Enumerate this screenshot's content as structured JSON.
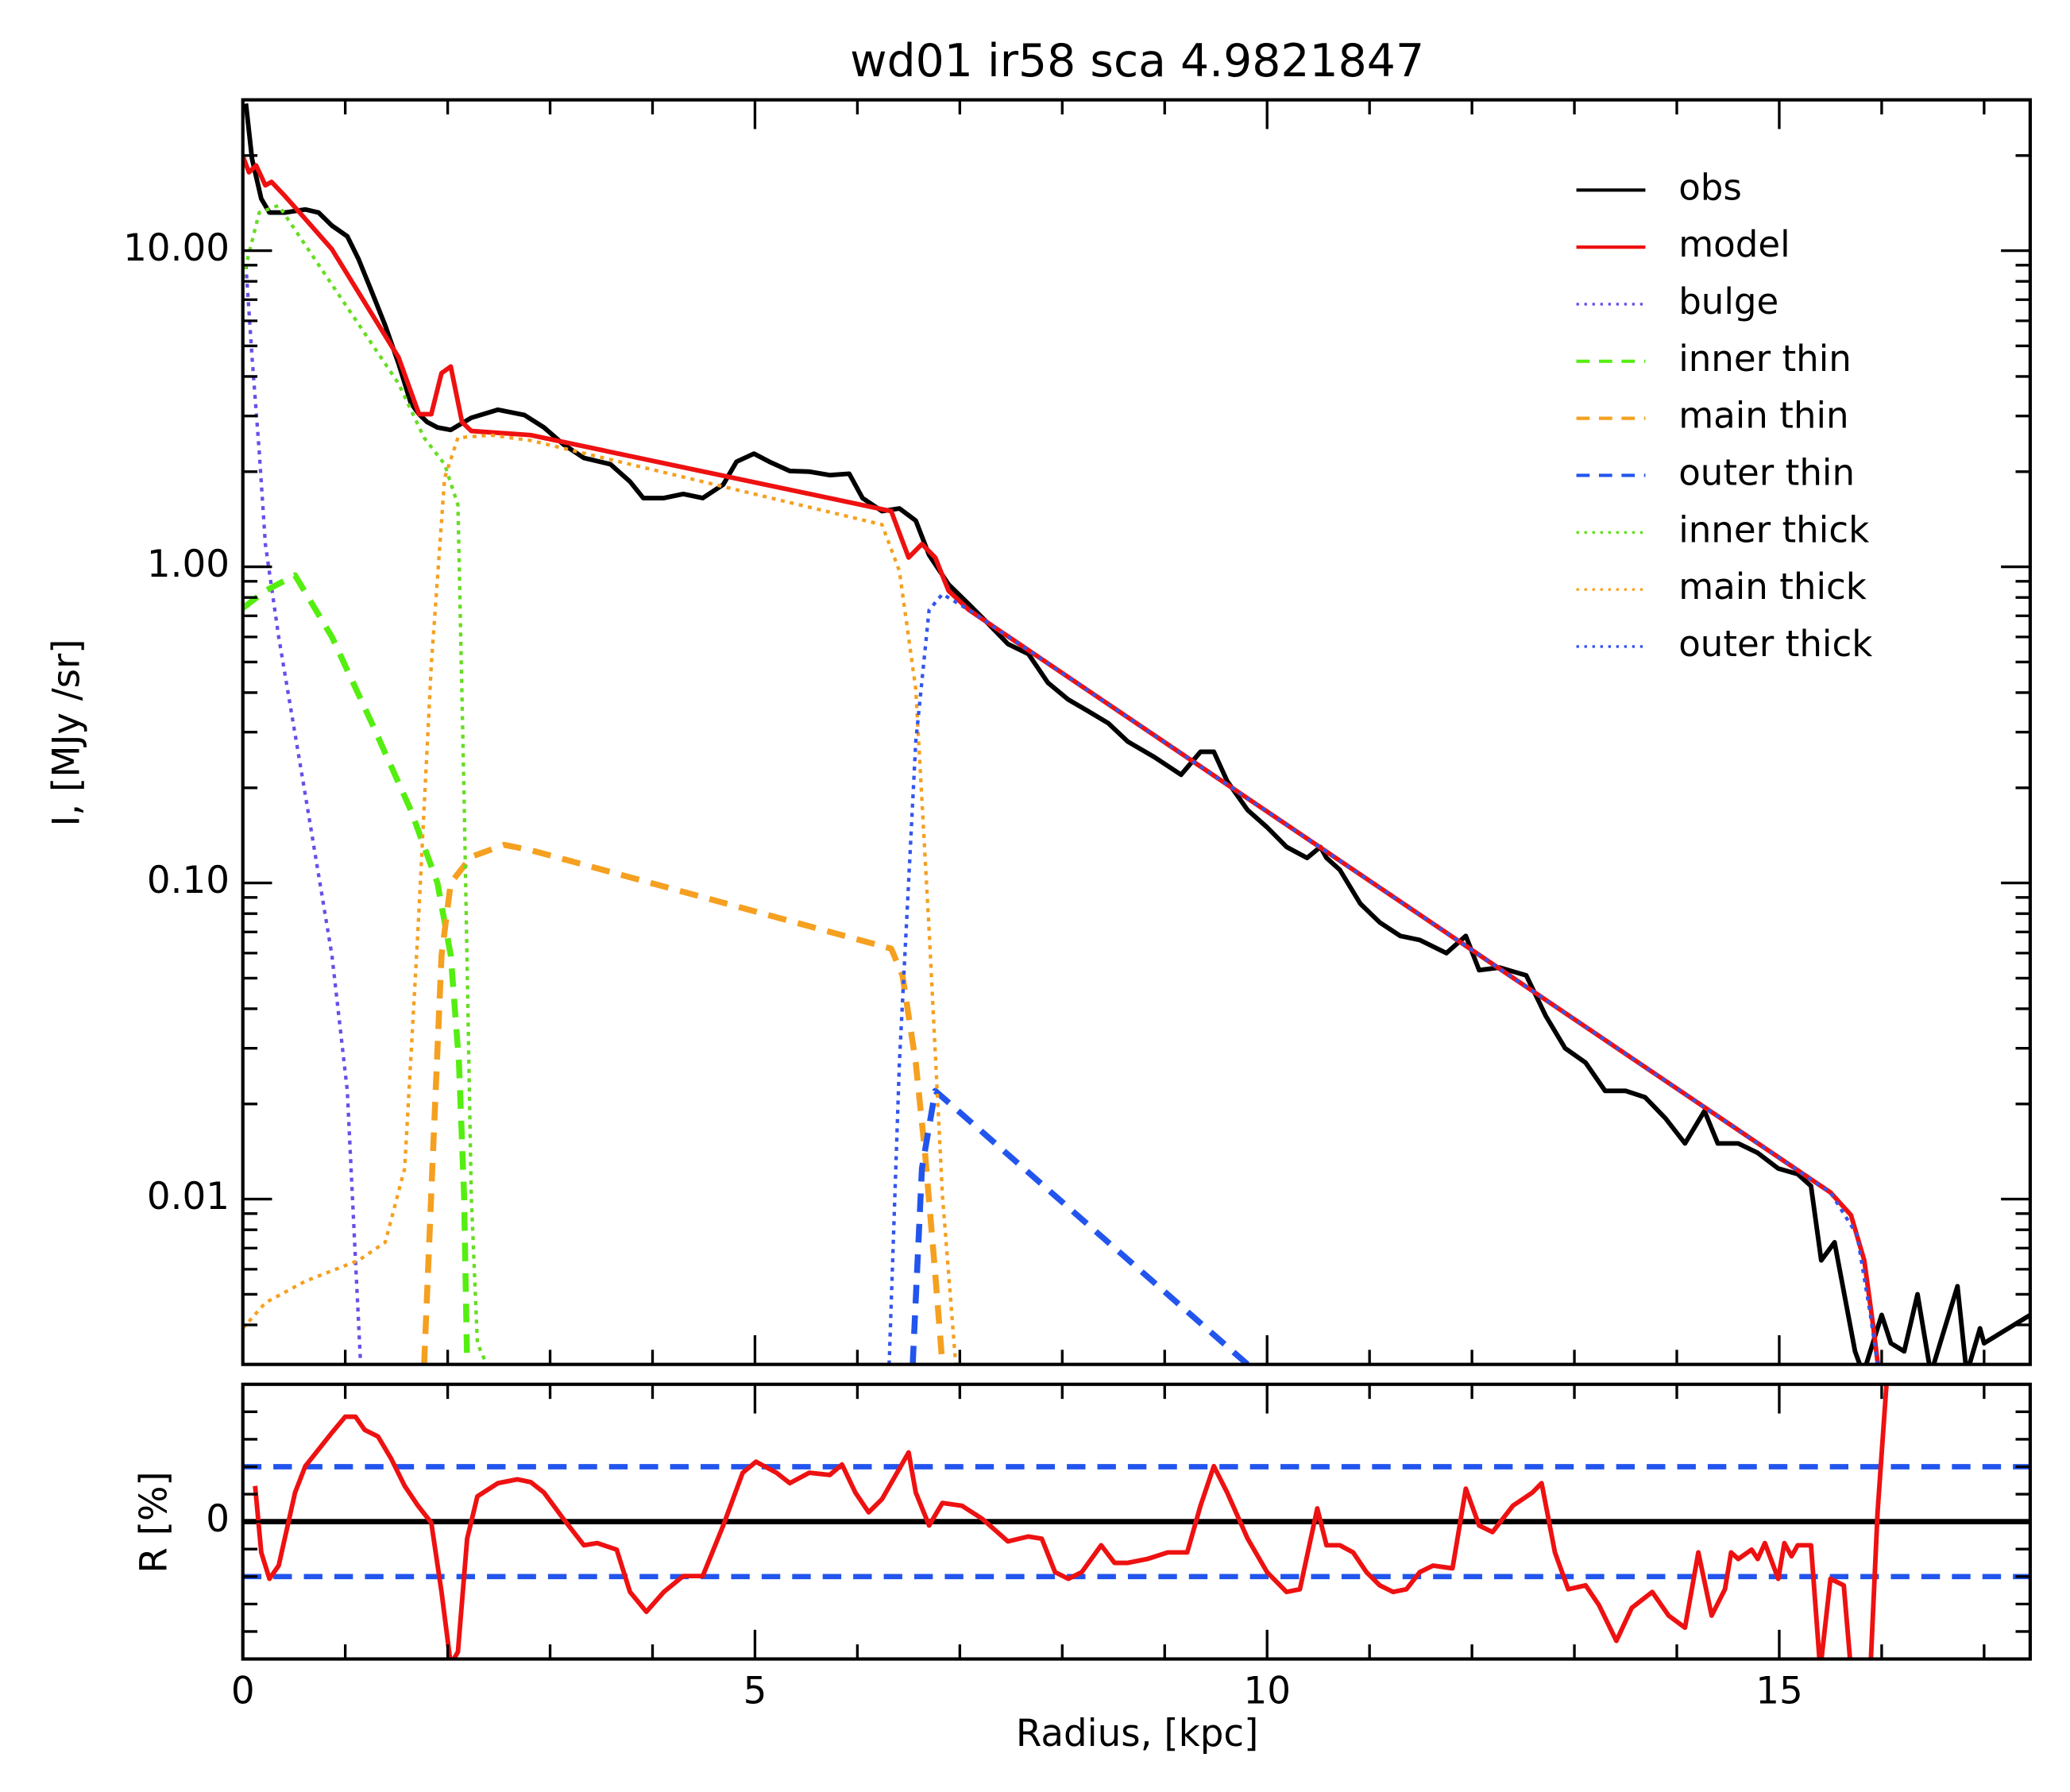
{
  "chart_data": [
    {
      "type": "line",
      "title": "wd01 ir58 sca 4.9821847",
      "ylabel": "I, [MJy /sr]",
      "ylog": true,
      "xlim": [
        0,
        17.45
      ],
      "ylim": [
        0.003,
        30
      ],
      "xticks": [
        0,
        5,
        10,
        15
      ],
      "show_xticklabels": false,
      "xminorticks": [
        1,
        2,
        3,
        4,
        6,
        7,
        8,
        9,
        11,
        12,
        13,
        14,
        16,
        17
      ],
      "yticks": [
        0.01,
        {
          "value": 0.1,
          "label": "0.10"
        },
        {
          "value": 1,
          "label": "1.00"
        },
        {
          "value": 10,
          "label": "10.00"
        }
      ],
      "yminorticks": [
        0.004,
        0.005,
        0.006,
        0.007,
        0.008,
        0.009,
        0.02,
        0.03,
        0.04,
        0.05,
        0.06,
        0.07,
        0.08,
        0.09,
        0.2,
        0.3,
        0.4,
        0.5,
        0.6,
        0.7,
        0.8,
        0.9,
        2,
        3,
        4,
        5,
        6,
        7,
        8,
        9,
        20
      ],
      "legend": "upper right",
      "series": [
        {
          "name": "obs",
          "color": "#000000",
          "style": "solid",
          "x": [
            0.03,
            0.09,
            0.18,
            0.26,
            0.41,
            0.61,
            0.74,
            0.87,
            1.02,
            1.13,
            1.26,
            1.39,
            1.52,
            1.64,
            1.72,
            1.8,
            1.9,
            2.03,
            2.23,
            2.49,
            2.75,
            2.94,
            3.13,
            3.33,
            3.59,
            3.78,
            3.91,
            4.11,
            4.3,
            4.49,
            4.69,
            4.82,
            4.99,
            5.14,
            5.34,
            5.53,
            5.73,
            5.92,
            6.05,
            6.24,
            6.41,
            6.57,
            6.7,
            6.89,
            7.09,
            7.28,
            7.47,
            7.67,
            7.86,
            8.06,
            8.25,
            8.45,
            8.64,
            8.9,
            9.16,
            9.35,
            9.48,
            9.61,
            9.81,
            10.0,
            10.19,
            10.39,
            10.52,
            10.58,
            10.71,
            10.91,
            11.1,
            11.3,
            11.49,
            11.75,
            11.94,
            12.07,
            12.27,
            12.53,
            12.72,
            12.91,
            13.11,
            13.3,
            13.5,
            13.69,
            13.89,
            14.08,
            14.27,
            14.4,
            14.6,
            14.79,
            14.99,
            15.18,
            15.31,
            15.41,
            15.54,
            15.74,
            15.82,
            16.0,
            16.09,
            16.22,
            16.35,
            16.48,
            16.74,
            16.83,
            16.96,
            17.0,
            17.45
          ],
          "values": [
            29.2,
            19.5,
            14.6,
            13.2,
            13.2,
            13.5,
            13.2,
            12.0,
            11.1,
            9.4,
            7.4,
            5.8,
            4.4,
            3.3,
            3.04,
            2.87,
            2.76,
            2.71,
            2.96,
            3.14,
            3.02,
            2.76,
            2.44,
            2.21,
            2.11,
            1.86,
            1.65,
            1.65,
            1.7,
            1.65,
            1.82,
            2.15,
            2.28,
            2.15,
            2.01,
            2.0,
            1.95,
            1.97,
            1.65,
            1.5,
            1.53,
            1.4,
            1.09,
            0.88,
            0.76,
            0.66,
            0.57,
            0.53,
            0.43,
            0.38,
            0.35,
            0.32,
            0.28,
            0.25,
            0.22,
            0.26,
            0.26,
            0.21,
            0.17,
            0.15,
            0.13,
            0.12,
            0.13,
            0.12,
            0.11,
            0.086,
            0.075,
            0.068,
            0.066,
            0.06,
            0.068,
            0.053,
            0.054,
            0.051,
            0.038,
            0.03,
            0.027,
            0.022,
            0.022,
            0.021,
            0.018,
            0.015,
            0.019,
            0.015,
            0.015,
            0.014,
            0.0125,
            0.012,
            0.011,
            0.0064,
            0.0073,
            0.0033,
            0.0028,
            0.0043,
            0.0035,
            0.0033,
            0.005,
            0.0028,
            0.0053,
            0.0028,
            0.0039,
            0.0035,
            0.0043
          ]
        },
        {
          "name": "model",
          "color": "#ee1111",
          "style": "solid",
          "x": [
            0,
            0.06,
            0.13,
            0.22,
            0.28,
            0.41,
            0.61,
            0.87,
            1.52,
            1.72,
            1.84,
            1.94,
            2.03,
            2.14,
            2.23,
            2.81,
            6.33,
            6.5,
            6.63,
            6.76,
            6.89,
            7.09,
            15.5,
            15.7,
            15.83,
            15.92,
            16.0
          ],
          "values": [
            19.9,
            17.7,
            18.6,
            16.1,
            16.5,
            14.9,
            12.6,
            10.1,
            4.6,
            3.04,
            3.04,
            4.1,
            4.3,
            2.87,
            2.69,
            2.61,
            1.5,
            1.07,
            1.18,
            1.07,
            0.84,
            0.73,
            0.0105,
            0.0089,
            0.0064,
            0.0039,
            0.0024
          ]
        },
        {
          "name": "bulge",
          "color": "#6a4ee8",
          "style": "dotted",
          "x": [
            0.03,
            0.09,
            0.16,
            0.22,
            0.35,
            0.61,
            0.87,
            1.02,
            1.1,
            1.15
          ],
          "values": [
            9.0,
            4.6,
            2.32,
            1.18,
            0.6,
            0.19,
            0.059,
            0.022,
            0.0064,
            0.003
          ]
        },
        {
          "name": "inner thin",
          "color": "#55ee11",
          "style": "dashed",
          "x": [
            0,
            0.22,
            0.51,
            0.87,
            1.26,
            1.64,
            1.9,
            2.03,
            2.11,
            2.16,
            2.19
          ],
          "values": [
            0.74,
            0.84,
            0.94,
            0.6,
            0.32,
            0.17,
            0.1,
            0.059,
            0.027,
            0.0103,
            0.003
          ]
        },
        {
          "name": "main thin",
          "color": "#f5a020",
          "style": "dashed",
          "x": [
            1.77,
            1.85,
            1.94,
            2.03,
            2.23,
            2.55,
            2.81,
            6.33,
            6.44,
            6.57,
            6.66,
            6.76,
            6.83
          ],
          "values": [
            0.003,
            0.0125,
            0.059,
            0.1,
            0.121,
            0.132,
            0.127,
            0.062,
            0.051,
            0.027,
            0.014,
            0.0058,
            0.003
          ]
        },
        {
          "name": "outer thin",
          "color": "#2255ee",
          "style": "dashed",
          "x": [
            6.54,
            6.63,
            6.76,
            9.81
          ],
          "values": [
            0.003,
            0.0125,
            0.022,
            0.003
          ]
        },
        {
          "name": "inner thick",
          "color": "#66dd22",
          "style": "dotted",
          "x": [
            0,
            0.16,
            0.35,
            1.52,
            1.77,
            1.97,
            2.1,
            2.16,
            2.23,
            2.29,
            2.38
          ],
          "values": [
            8.2,
            13.2,
            13.9,
            3.8,
            2.56,
            2.11,
            1.57,
            0.19,
            0.0103,
            0.0035,
            0.003
          ]
        },
        {
          "name": "main thick",
          "color": "#f5a020",
          "style": "dotted",
          "x": [
            0,
            0.22,
            0.61,
            1.13,
            1.39,
            1.58,
            1.71,
            1.84,
            1.97,
            2.1,
            2.42,
            2.81,
            6.24,
            6.41,
            6.57,
            6.7,
            6.83,
            6.96
          ],
          "values": [
            0.0039,
            0.0047,
            0.0055,
            0.0064,
            0.0073,
            0.0125,
            0.071,
            0.49,
            1.91,
            2.56,
            2.61,
            2.51,
            1.36,
            0.97,
            0.41,
            0.071,
            0.0103,
            0.003
          ]
        },
        {
          "name": "outer thick",
          "color": "#3355ee",
          "style": "dotted",
          "x": [
            6.31,
            6.41,
            6.57,
            6.7,
            6.83,
            7.09,
            15.5,
            15.76,
            15.89,
            15.96
          ],
          "values": [
            0.003,
            0.027,
            0.28,
            0.73,
            0.82,
            0.73,
            0.0105,
            0.0077,
            0.0043,
            0.003
          ]
        }
      ]
    },
    {
      "type": "line",
      "xlabel": "Radius, [kpc]",
      "ylabel": "R [%]",
      "ylog": false,
      "xlim": [
        0,
        17.45
      ],
      "ylim": [
        -25,
        25
      ],
      "xticks": [
        0,
        5,
        10,
        15
      ],
      "show_xticklabels": true,
      "xminorticks": [
        1,
        2,
        3,
        4,
        6,
        7,
        8,
        9,
        11,
        12,
        13,
        14,
        16,
        17
      ],
      "yticks": [
        0
      ],
      "yminorticks": [
        -20,
        -15,
        -10,
        -5,
        5,
        10,
        15,
        20
      ],
      "reference_lines": [
        {
          "value": 0,
          "color": "#000000",
          "style": "solid"
        },
        {
          "value": 10,
          "color": "#2255ee",
          "style": "dashed"
        },
        {
          "value": -10,
          "color": "#2255ee",
          "style": "dashed"
        }
      ],
      "series": [
        {
          "color": "#ee1111",
          "style": "solid",
          "x": [
            0.12,
            0.18,
            0.26,
            0.35,
            0.51,
            0.61,
            0.87,
            1.0,
            1.1,
            1.19,
            1.32,
            1.45,
            1.58,
            1.71,
            1.84,
            1.94,
            2.03,
            2.1,
            2.19,
            2.29,
            2.49,
            2.68,
            2.81,
            2.94,
            3.13,
            3.33,
            3.46,
            3.65,
            3.78,
            3.94,
            4.11,
            4.3,
            4.49,
            4.69,
            4.88,
            5.01,
            5.21,
            5.34,
            5.53,
            5.73,
            5.85,
            5.98,
            6.11,
            6.24,
            6.5,
            6.57,
            6.7,
            6.83,
            7.02,
            7.22,
            7.47,
            7.67,
            7.8,
            7.93,
            8.06,
            8.19,
            8.38,
            8.51,
            8.64,
            8.83,
            9.03,
            9.22,
            9.35,
            9.48,
            9.61,
            9.81,
            10.0,
            10.19,
            10.32,
            10.49,
            10.58,
            10.71,
            10.84,
            10.97,
            11.1,
            11.23,
            11.36,
            11.49,
            11.62,
            11.81,
            11.94,
            12.07,
            12.2,
            12.4,
            12.59,
            12.68,
            12.81,
            12.94,
            13.11,
            13.24,
            13.41,
            13.56,
            13.76,
            13.92,
            14.08,
            14.21,
            14.34,
            14.47,
            14.53,
            14.6,
            14.73,
            14.79,
            14.86,
            14.99,
            15.05,
            15.12,
            15.18,
            15.31,
            15.4,
            15.5,
            15.63,
            15.7,
            15.89,
            15.96,
            16.05
          ],
          "values": [
            6.5,
            -5.6,
            -10.4,
            -8.0,
            5.3,
            10.1,
            16.2,
            19.1,
            19.1,
            16.7,
            15.5,
            11.4,
            6.5,
            2.9,
            -0.2,
            -12.8,
            -26,
            -23.7,
            -3.1,
            4.6,
            7.0,
            7.7,
            7.2,
            5.3,
            0.5,
            -4.3,
            -3.9,
            -5.1,
            -12.8,
            -16.4,
            -12.8,
            -9.9,
            -9.9,
            -0.7,
            8.9,
            10.9,
            8.9,
            7.0,
            8.9,
            8.5,
            10.4,
            5.3,
            1.7,
            4.1,
            12.6,
            5.3,
            -0.7,
            3.4,
            2.9,
            0.5,
            -3.6,
            -2.7,
            -3.1,
            -9.2,
            -10.4,
            -9.2,
            -4.3,
            -7.5,
            -7.5,
            -6.8,
            -5.6,
            -5.6,
            2.9,
            10.1,
            5.3,
            -3.1,
            -9.2,
            -12.8,
            -12.3,
            2.4,
            -4.3,
            -4.3,
            -5.6,
            -9.2,
            -11.6,
            -12.8,
            -12.3,
            -9.2,
            -8.0,
            -8.5,
            6.0,
            -0.7,
            -1.9,
            2.9,
            5.3,
            7.0,
            -5.6,
            -12.3,
            -11.6,
            -15.2,
            -21.7,
            -15.7,
            -12.8,
            -17.1,
            -19.3,
            -5.6,
            -17.1,
            -12.3,
            -5.6,
            -6.8,
            -5.1,
            -6.8,
            -3.9,
            -10.4,
            -3.9,
            -6.3,
            -4.3,
            -4.3,
            -27,
            -10.4,
            -11.6,
            -27,
            -27,
            1.7,
            25.8
          ]
        }
      ]
    }
  ]
}
